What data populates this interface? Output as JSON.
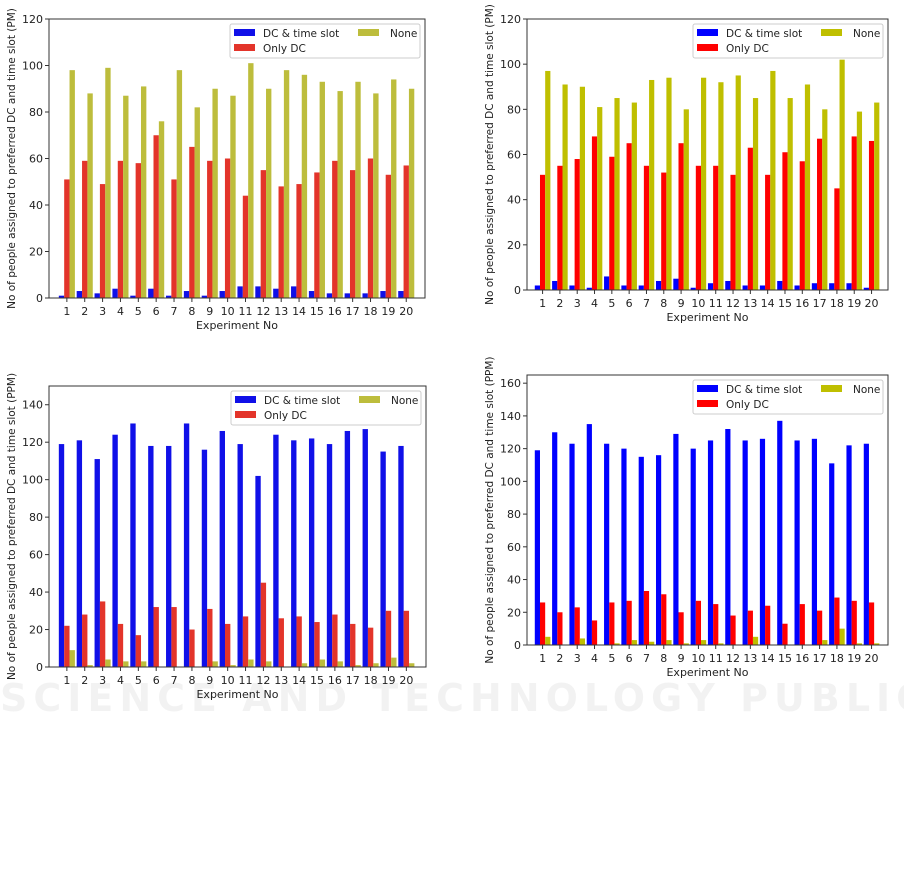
{
  "watermark": "SCIENCE AND TECHNOLOGY PUBLICATIONS",
  "chart_data": [
    {
      "type": "bar",
      "title": "",
      "xlabel": "Experiment No",
      "ylabel": "No of people assigned to preferred DC and time slot (PM)",
      "ylim": [
        0,
        120
      ],
      "yticks": [
        0,
        20,
        40,
        60,
        80,
        100,
        120
      ],
      "categories": [
        "1",
        "2",
        "3",
        "4",
        "5",
        "6",
        "7",
        "8",
        "9",
        "10",
        "11",
        "12",
        "13",
        "14",
        "15",
        "16",
        "17",
        "18",
        "19",
        "20"
      ],
      "legend_position": "top-right",
      "series": [
        {
          "name": "DC & time slot",
          "color": "#1010e8",
          "values": [
            1,
            3,
            2,
            4,
            1,
            4,
            1,
            3,
            1,
            3,
            5,
            5,
            4,
            5,
            3,
            2,
            2,
            2,
            3,
            3
          ]
        },
        {
          "name": "Only DC",
          "color": "#e3342a",
          "values": [
            51,
            59,
            49,
            59,
            58,
            70,
            51,
            65,
            59,
            60,
            44,
            55,
            48,
            49,
            54,
            59,
            55,
            60,
            53,
            57
          ]
        },
        {
          "name": "None",
          "color": "#bdbd3c",
          "values": [
            98,
            88,
            99,
            87,
            91,
            76,
            98,
            82,
            90,
            87,
            101,
            90,
            98,
            96,
            93,
            89,
            93,
            88,
            94,
            90
          ]
        }
      ]
    },
    {
      "type": "bar",
      "title": "",
      "xlabel": "Experiment No",
      "ylabel": "No of people assigned to preferred DC and time slot (PM)",
      "ylim": [
        0,
        120
      ],
      "yticks": [
        0,
        20,
        40,
        60,
        80,
        100,
        120
      ],
      "categories": [
        "1",
        "2",
        "3",
        "4",
        "5",
        "6",
        "7",
        "8",
        "9",
        "10",
        "11",
        "12",
        "13",
        "14",
        "15",
        "16",
        "17",
        "18",
        "19",
        "20"
      ],
      "legend_position": "top-right",
      "series": [
        {
          "name": "DC & time slot",
          "color": "#0000ff",
          "values": [
            2,
            4,
            2,
            1,
            6,
            2,
            2,
            4,
            5,
            1,
            3,
            4,
            2,
            2,
            4,
            2,
            3,
            3,
            3,
            1
          ]
        },
        {
          "name": "Only DC",
          "color": "#ff0000",
          "values": [
            51,
            55,
            58,
            68,
            59,
            65,
            55,
            52,
            65,
            55,
            55,
            51,
            63,
            51,
            61,
            57,
            67,
            45,
            68,
            66
          ]
        },
        {
          "name": "None",
          "color": "#bfbf00",
          "values": [
            97,
            91,
            90,
            81,
            85,
            83,
            93,
            94,
            80,
            94,
            92,
            95,
            85,
            97,
            85,
            91,
            80,
            102,
            79,
            83
          ]
        }
      ]
    },
    {
      "type": "bar",
      "title": "",
      "xlabel": "Experiment No",
      "ylabel": "No of people assigned to preferred DC and time slot (PPM)",
      "ylim": [
        0,
        150
      ],
      "yticks": [
        0,
        20,
        40,
        60,
        80,
        100,
        120,
        140
      ],
      "categories": [
        "1",
        "2",
        "3",
        "4",
        "5",
        "6",
        "7",
        "8",
        "9",
        "10",
        "11",
        "12",
        "13",
        "14",
        "15",
        "16",
        "17",
        "18",
        "19",
        "20"
      ],
      "legend_position": "top-right",
      "series": [
        {
          "name": "DC & time slot",
          "color": "#1010e8",
          "values": [
            119,
            121,
            111,
            124,
            130,
            118,
            118,
            130,
            116,
            126,
            119,
            102,
            124,
            121,
            122,
            119,
            126,
            127,
            115,
            118
          ]
        },
        {
          "name": "Only DC",
          "color": "#e3342a",
          "values": [
            22,
            28,
            35,
            23,
            17,
            32,
            32,
            20,
            31,
            23,
            27,
            45,
            26,
            27,
            24,
            28,
            23,
            21,
            30,
            30
          ]
        },
        {
          "name": "None",
          "color": "#bdbd3c",
          "values": [
            9,
            1,
            4,
            3,
            3,
            0,
            0,
            0,
            3,
            1,
            4,
            3,
            0,
            2,
            4,
            3,
            1,
            2,
            5,
            2
          ]
        }
      ]
    },
    {
      "type": "bar",
      "title": "",
      "xlabel": "Experiment No",
      "ylabel": "No of people assigned to preferred DC and time slot (PPM)",
      "ylim": [
        0,
        165
      ],
      "yticks": [
        0,
        20,
        40,
        60,
        80,
        100,
        120,
        140,
        160
      ],
      "categories": [
        "1",
        "2",
        "3",
        "4",
        "5",
        "6",
        "7",
        "8",
        "9",
        "10",
        "11",
        "12",
        "13",
        "14",
        "15",
        "16",
        "17",
        "18",
        "19",
        "20"
      ],
      "legend_position": "top-right",
      "series": [
        {
          "name": "DC & time slot",
          "color": "#0000ff",
          "values": [
            119,
            130,
            123,
            135,
            123,
            120,
            115,
            116,
            129,
            120,
            125,
            132,
            125,
            126,
            137,
            125,
            126,
            111,
            122,
            123
          ]
        },
        {
          "name": "Only DC",
          "color": "#ff0000",
          "values": [
            26,
            20,
            23,
            15,
            26,
            27,
            33,
            31,
            20,
            27,
            25,
            18,
            21,
            24,
            13,
            25,
            21,
            29,
            27,
            26
          ]
        },
        {
          "name": "None",
          "color": "#bfbf00",
          "values": [
            5,
            0,
            4,
            0,
            1,
            3,
            2,
            3,
            1,
            3,
            1,
            0,
            5,
            0,
            0,
            0,
            3,
            10,
            1,
            1
          ]
        }
      ]
    }
  ]
}
